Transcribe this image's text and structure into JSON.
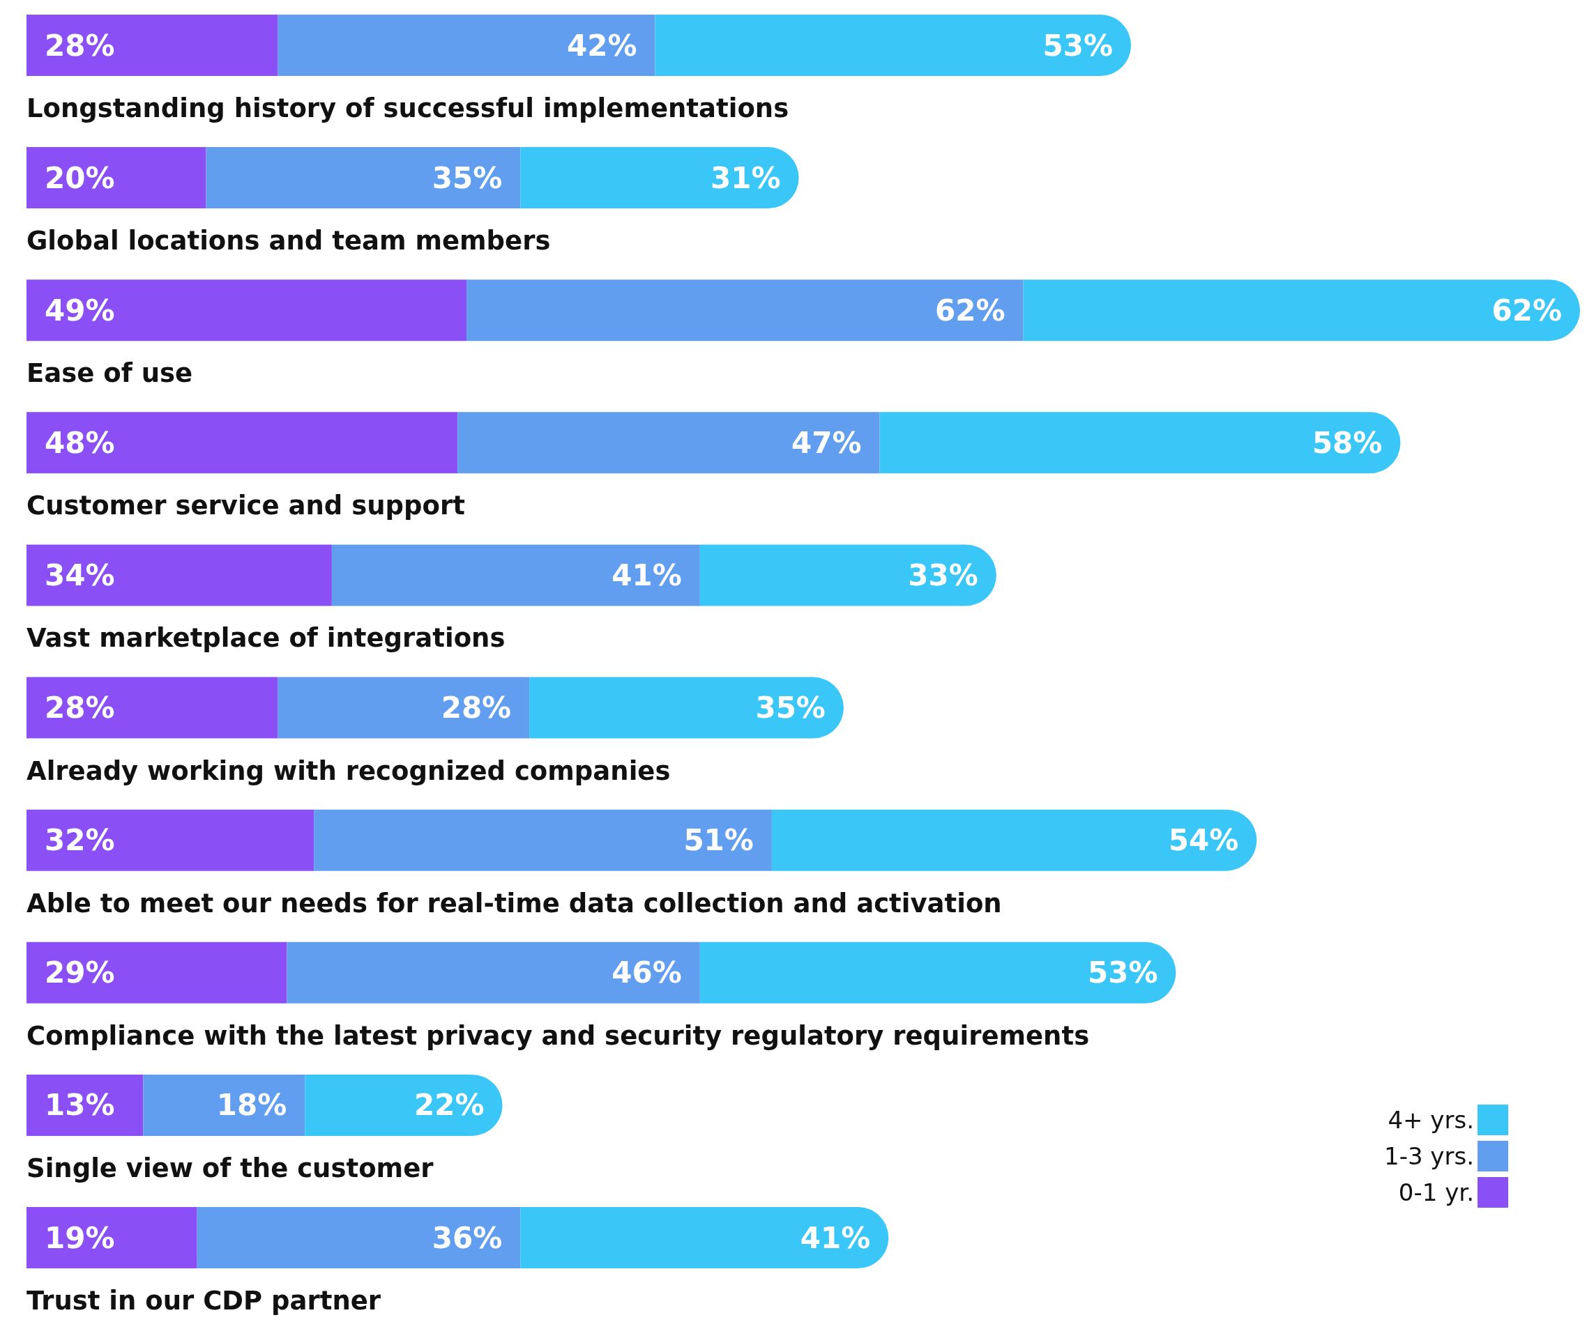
{
  "chart_data": {
    "type": "bar",
    "stacked": true,
    "orientation": "horizontal",
    "legend": "bottom right",
    "categories": [
      "Longstanding history of successful implementations",
      "Global locations and team members",
      "Ease of use",
      "Customer service and support",
      "Vast marketplace of integrations",
      "Already working with recognized companies",
      "Able to meet our needs for real-time data collection and activation",
      "Compliance with the latest privacy and security regulatory requirements",
      "Single view of the customer",
      "Trust in our CDP partner"
    ],
    "series": [
      {
        "name": "0-1 yr.",
        "color": "#8a4ff5",
        "values": [
          28,
          20,
          49,
          48,
          34,
          28,
          32,
          29,
          13,
          19
        ],
        "value_labels": [
          "28%",
          "20%",
          "49%",
          "48%",
          "34%",
          "28%",
          "32%",
          "29%",
          "13%",
          "19%"
        ]
      },
      {
        "name": "1-3 yrs.",
        "color": "#629ef0",
        "values": [
          42,
          35,
          62,
          47,
          41,
          28,
          51,
          46,
          18,
          36
        ],
        "value_labels": [
          "42%",
          "35%",
          "62%",
          "47%",
          "41%",
          "28%",
          "51%",
          "46%",
          "18%",
          "36%"
        ]
      },
      {
        "name": "4+ yrs.",
        "color": "#3ac6f7",
        "values": [
          53,
          31,
          62,
          58,
          33,
          35,
          54,
          53,
          22,
          41
        ],
        "value_labels": [
          "53%",
          "31%",
          "62%",
          "58%",
          "33%",
          "35%",
          "54%",
          "53%",
          "22%",
          "41%"
        ]
      }
    ]
  }
}
